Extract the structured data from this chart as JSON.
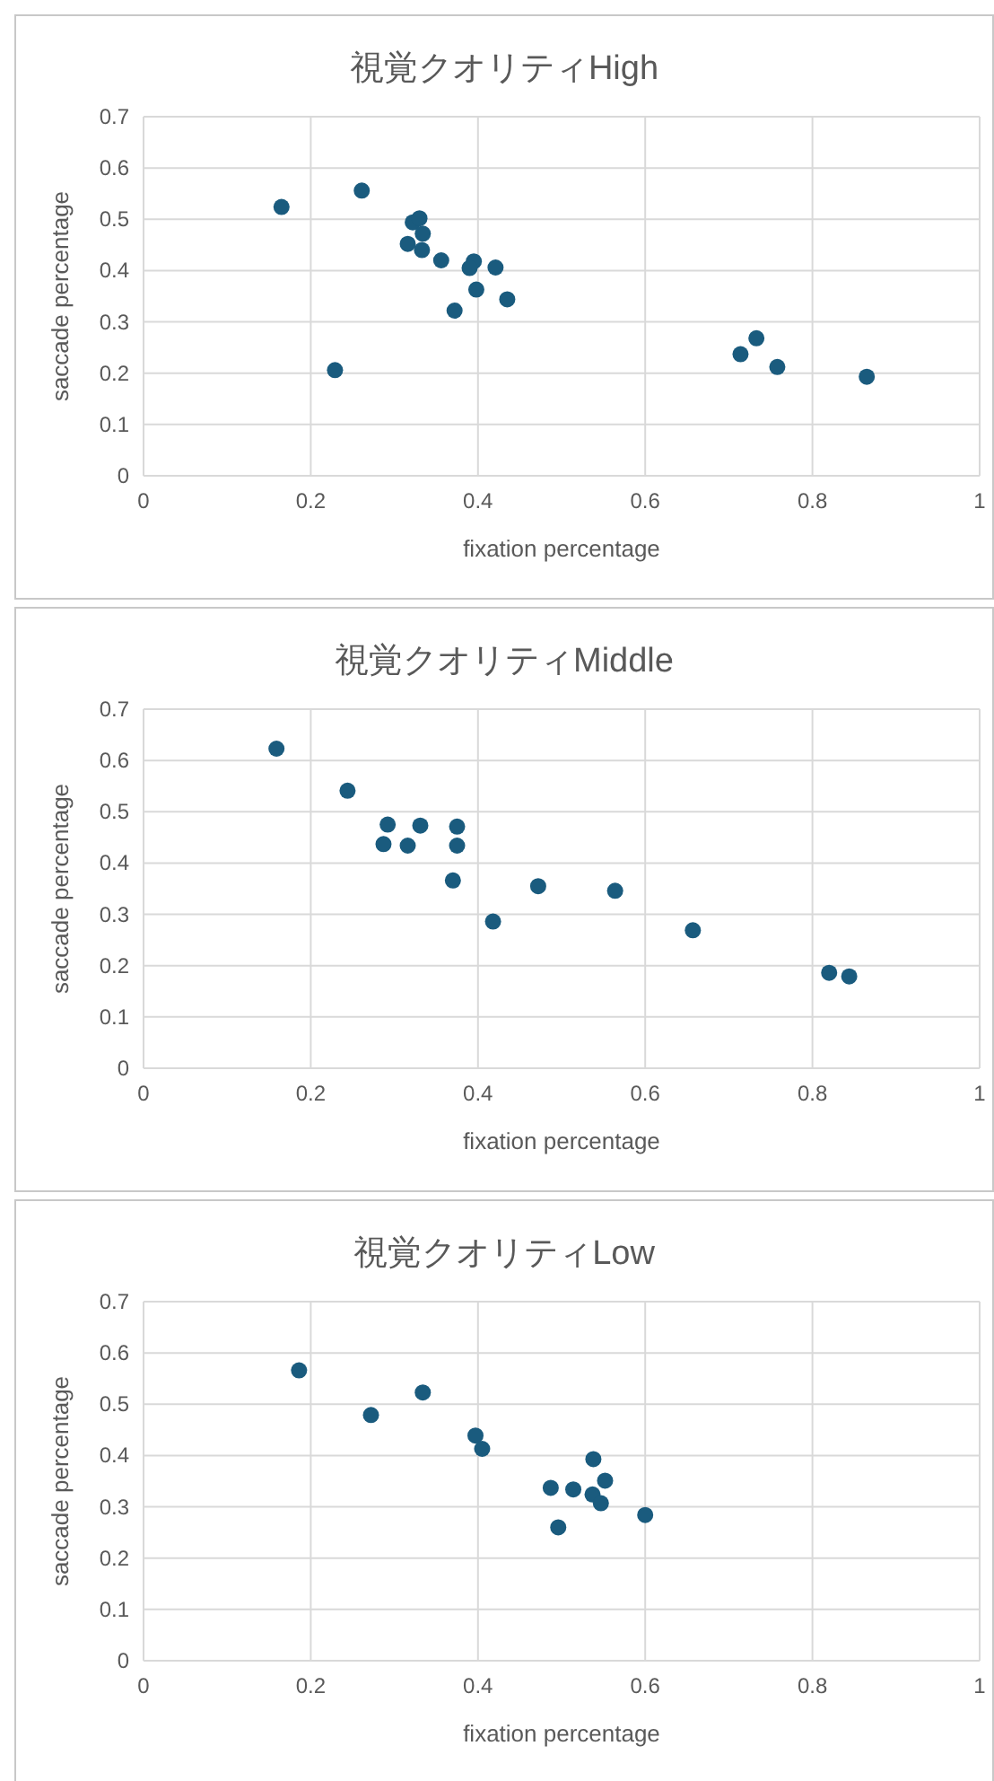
{
  "chart_data": [
    {
      "type": "scatter",
      "title": "視覚クオリティHigh",
      "xlabel": "fixation percentage",
      "ylabel": "saccade percentage",
      "xlim": [
        0,
        1
      ],
      "xticks": [
        0,
        0.2,
        0.4,
        0.6,
        0.8,
        1
      ],
      "ylim": [
        0,
        0.7
      ],
      "yticks": [
        0,
        0.1,
        0.2,
        0.3,
        0.4,
        0.5,
        0.6,
        0.7
      ],
      "grid": true,
      "marker": "circle",
      "series": [
        {
          "color": "#1a5b7e",
          "x": [
            0.165,
            0.261,
            0.322,
            0.33,
            0.334,
            0.316,
            0.333,
            0.356,
            0.395,
            0.39,
            0.421,
            0.398,
            0.435,
            0.372,
            0.229,
            0.714,
            0.733,
            0.758,
            0.865
          ],
          "values": [
            0.524,
            0.556,
            0.494,
            0.502,
            0.472,
            0.452,
            0.44,
            0.42,
            0.418,
            0.405,
            0.406,
            0.363,
            0.344,
            0.322,
            0.206,
            0.237,
            0.268,
            0.212,
            0.193
          ]
        }
      ]
    },
    {
      "type": "scatter",
      "title": "視覚クオリティMiddle",
      "xlabel": "fixation percentage",
      "ylabel": "saccade percentage",
      "xlim": [
        0,
        1
      ],
      "xticks": [
        0,
        0.2,
        0.4,
        0.6,
        0.8,
        1
      ],
      "ylim": [
        0,
        0.7
      ],
      "yticks": [
        0,
        0.1,
        0.2,
        0.3,
        0.4,
        0.5,
        0.6,
        0.7
      ],
      "grid": true,
      "marker": "circle",
      "series": [
        {
          "color": "#1a5b7e",
          "x": [
            0.159,
            0.244,
            0.292,
            0.287,
            0.316,
            0.331,
            0.375,
            0.375,
            0.37,
            0.418,
            0.472,
            0.564,
            0.657,
            0.82,
            0.844
          ],
          "values": [
            0.623,
            0.541,
            0.475,
            0.437,
            0.434,
            0.473,
            0.471,
            0.434,
            0.366,
            0.286,
            0.355,
            0.346,
            0.269,
            0.186,
            0.179
          ]
        }
      ]
    },
    {
      "type": "scatter",
      "title": "視覚クオリティLow",
      "xlabel": "fixation percentage",
      "ylabel": "saccade percentage",
      "xlim": [
        0,
        1
      ],
      "xticks": [
        0,
        0.2,
        0.4,
        0.6,
        0.8,
        1
      ],
      "ylim": [
        0,
        0.7
      ],
      "yticks": [
        0,
        0.1,
        0.2,
        0.3,
        0.4,
        0.5,
        0.6,
        0.7
      ],
      "grid": true,
      "marker": "circle",
      "series": [
        {
          "color": "#1a5b7e",
          "x": [
            0.186,
            0.272,
            0.334,
            0.397,
            0.405,
            0.487,
            0.514,
            0.496,
            0.538,
            0.552,
            0.537,
            0.547,
            0.6
          ],
          "values": [
            0.566,
            0.479,
            0.523,
            0.439,
            0.413,
            0.337,
            0.334,
            0.26,
            0.393,
            0.351,
            0.324,
            0.307,
            0.284
          ]
        }
      ]
    }
  ]
}
